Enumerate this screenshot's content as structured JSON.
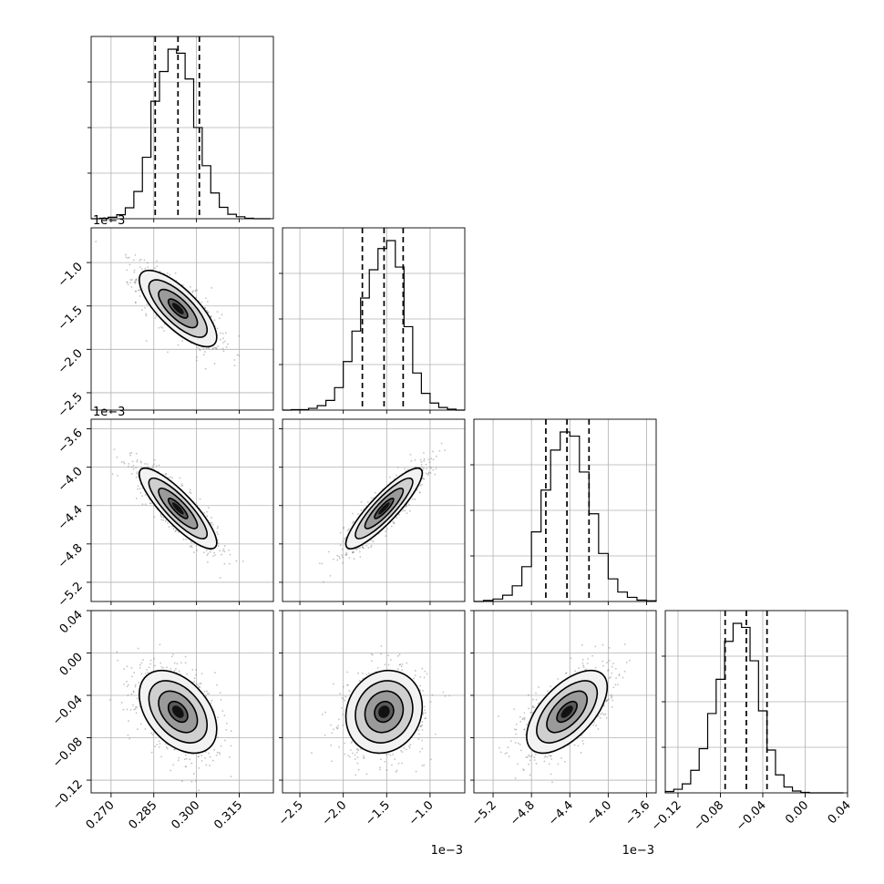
{
  "chart_data": {
    "type": "corner",
    "parameters": [
      {
        "range": [
          0.263,
          0.327
        ],
        "ticks": [
          0.27,
          0.285,
          0.3,
          0.315
        ],
        "tick_labels": [
          "0.270",
          "0.285",
          "0.300",
          "0.315"
        ],
        "offset": "",
        "quantiles": [
          0.2855,
          0.2935,
          0.301
        ],
        "median": 0.2935
      },
      {
        "range": [
          -2.7,
          -0.6
        ],
        "ticks": [
          -2.5,
          -2.0,
          -1.5,
          -1.0
        ],
        "tick_labels": [
          "−2.5",
          "−2.0",
          "−1.5",
          "−1.0"
        ],
        "offset": "1e−3",
        "quantiles": [
          -1.78,
          -1.53,
          -1.31
        ],
        "median": -1.53
      },
      {
        "range": [
          -5.4,
          -3.5
        ],
        "ticks": [
          -5.2,
          -4.8,
          -4.4,
          -4.0,
          -3.6
        ],
        "tick_labels": [
          "−5.2",
          "−4.8",
          "−4.4",
          "−4.0",
          "−3.6"
        ],
        "offset": "1e−3",
        "quantiles": [
          -4.65,
          -4.43,
          -4.2
        ],
        "median": -4.43
      },
      {
        "range": [
          -0.132,
          0.04
        ],
        "ticks": [
          -0.12,
          -0.08,
          -0.04,
          0.0,
          0.04
        ],
        "tick_labels": [
          "−0.12",
          "−0.08",
          "−0.04",
          "0.00",
          "0.04"
        ],
        "offset": "",
        "quantiles": [
          -0.0755,
          -0.0555,
          -0.036
        ],
        "median": -0.0555
      }
    ],
    "histograms": [
      {
        "param": 0,
        "bin_edges": [
          0.263,
          0.266,
          0.269,
          0.272,
          0.275,
          0.278,
          0.281,
          0.284,
          0.287,
          0.29,
          0.293,
          0.296,
          0.299,
          0.302,
          0.305,
          0.308,
          0.311,
          0.314,
          0.317,
          0.32,
          0.323,
          0.326
        ],
        "counts": [
          0,
          1,
          3,
          8,
          22,
          55,
          124,
          237,
          297,
          342,
          334,
          282,
          184,
          107,
          52,
          23,
          9,
          4,
          1,
          0,
          0
        ]
      },
      {
        "param": 1,
        "bin_edges": [
          -2.7,
          -2.6,
          -2.5,
          -2.4,
          -2.3,
          -2.2,
          -2.1,
          -2.0,
          -1.9,
          -1.8,
          -1.7,
          -1.6,
          -1.5,
          -1.4,
          -1.3,
          -1.2,
          -1.1,
          -1.0,
          -0.9,
          -0.8,
          -0.7,
          -0.6
        ],
        "counts": [
          0,
          1,
          1,
          4,
          10,
          22,
          51,
          110,
          179,
          254,
          318,
          366,
          384,
          324,
          189,
          84,
          38,
          16,
          6,
          2,
          0
        ]
      },
      {
        "param": 2,
        "bin_edges": [
          -5.4,
          -5.3,
          -5.2,
          -5.1,
          -5.0,
          -4.9,
          -4.8,
          -4.7,
          -4.6,
          -4.5,
          -4.4,
          -4.3,
          -4.2,
          -4.1,
          -4.0,
          -3.9,
          -3.8,
          -3.7,
          -3.6,
          -3.5
        ],
        "counts": [
          0,
          3,
          7,
          18,
          45,
          100,
          200,
          320,
          435,
          487,
          475,
          372,
          252,
          138,
          65,
          27,
          12,
          4,
          2
        ]
      },
      {
        "param": 3,
        "bin_edges": [
          -0.132,
          -0.124,
          -0.116,
          -0.108,
          -0.1,
          -0.092,
          -0.084,
          -0.076,
          -0.068,
          -0.06,
          -0.052,
          -0.044,
          -0.036,
          -0.028,
          -0.02,
          -0.012,
          -0.004,
          0.004,
          0.012,
          0.02,
          0.028,
          0.036
        ],
        "counts": [
          3,
          8,
          20,
          50,
          98,
          176,
          252,
          336,
          376,
          367,
          293,
          182,
          95,
          40,
          13,
          4,
          1,
          0,
          0,
          0,
          0
        ]
      }
    ],
    "joint": [
      {
        "x_param": 0,
        "y_param": 1,
        "center": [
          0.2935,
          -1.53
        ],
        "sd": [
          0.0068,
          0.22
        ],
        "correlation": -0.75
      },
      {
        "x_param": 0,
        "y_param": 2,
        "center": [
          0.2935,
          -4.43
        ],
        "sd": [
          0.0068,
          0.21
        ],
        "correlation": -0.85
      },
      {
        "x_param": 1,
        "y_param": 2,
        "center": [
          -1.53,
          -4.43
        ],
        "sd": [
          0.22,
          0.21
        ],
        "correlation": 0.88
      },
      {
        "x_param": 0,
        "y_param": 3,
        "center": [
          0.2935,
          -0.0555
        ],
        "sd": [
          0.0068,
          0.0195
        ],
        "correlation": -0.42
      },
      {
        "x_param": 1,
        "y_param": 3,
        "center": [
          -1.53,
          -0.0555
        ],
        "sd": [
          0.22,
          0.0195
        ],
        "correlation": 0.12
      },
      {
        "x_param": 2,
        "y_param": 3,
        "center": [
          -4.43,
          -0.0555
        ],
        "sd": [
          0.21,
          0.0195
        ],
        "correlation": 0.6
      }
    ],
    "contour_levels_sigma": [
      0.5,
      1.0,
      1.5,
      2.0
    ],
    "grid": true,
    "colors": {
      "line": "#000000",
      "grid": "#b0b0b0",
      "points": "#7a7a7a"
    }
  }
}
